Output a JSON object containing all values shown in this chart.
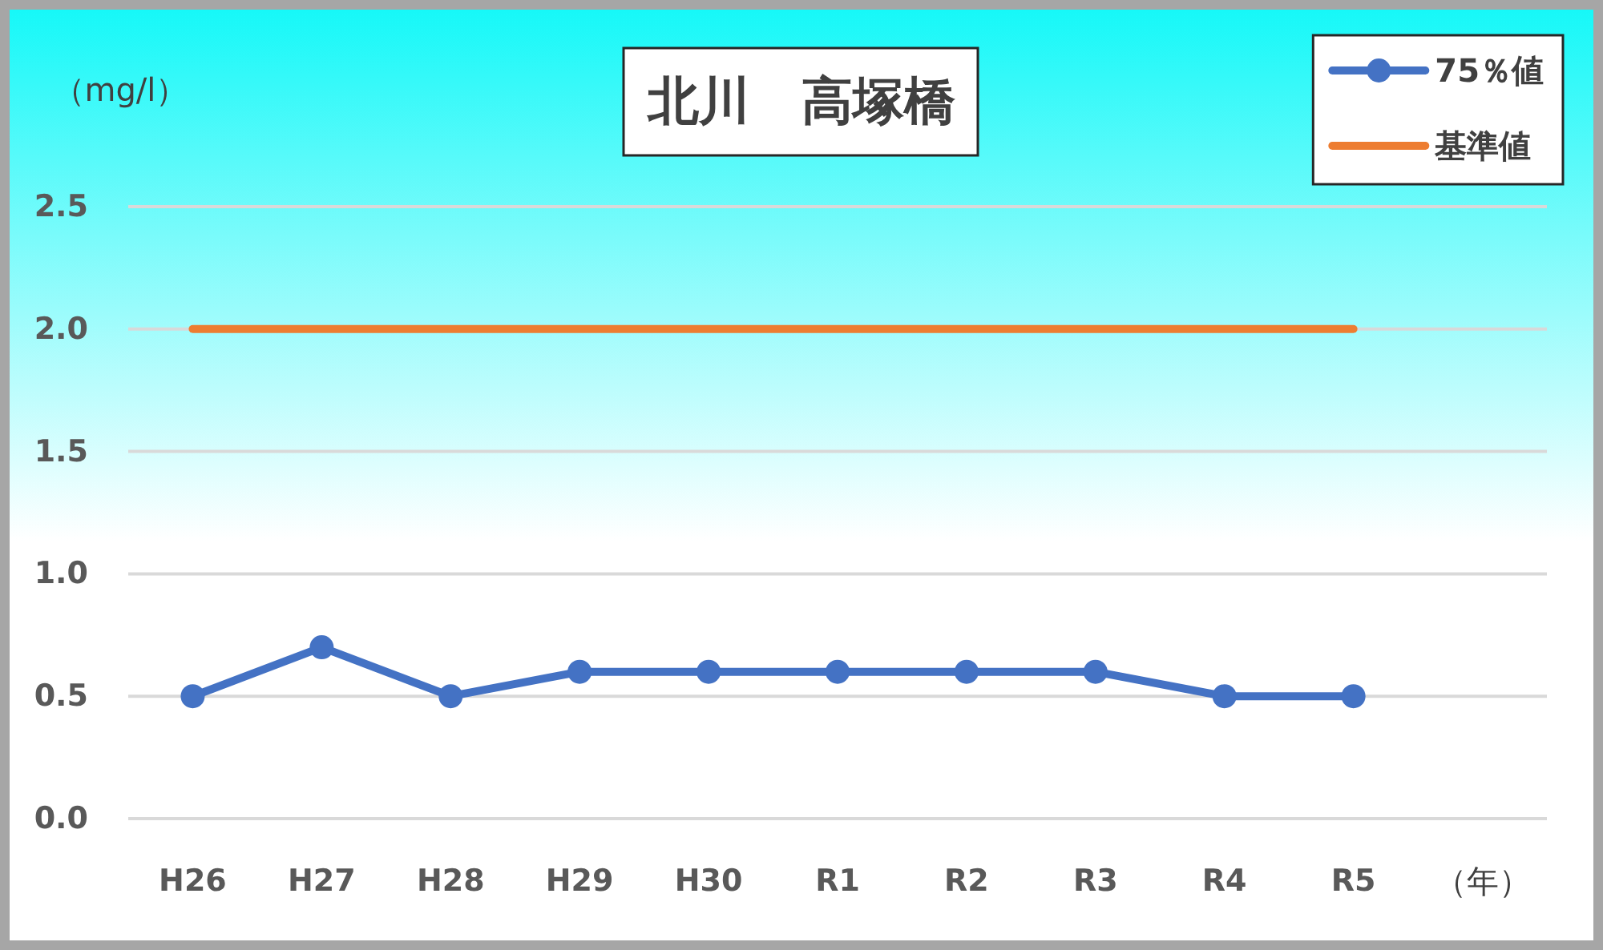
{
  "chart_data": {
    "type": "line",
    "title": "北川　高塚橋",
    "ylabel": "（mg/l）",
    "xlabel": "（年）",
    "categories": [
      "H26",
      "H27",
      "H28",
      "H29",
      "H30",
      "R1",
      "R2",
      "R3",
      "R4",
      "R5"
    ],
    "series": [
      {
        "name": "75％値",
        "color": "#4472c4",
        "marker": "circle",
        "values": [
          0.5,
          0.7,
          0.5,
          0.6,
          0.6,
          0.6,
          0.6,
          0.6,
          0.5,
          0.5
        ]
      },
      {
        "name": "基準値",
        "color": "#ed7d31",
        "values": [
          2.0,
          2.0,
          2.0,
          2.0,
          2.0,
          2.0,
          2.0,
          2.0,
          2.0,
          2.0
        ]
      }
    ],
    "ylim": [
      0,
      2.5
    ],
    "yticks": [
      {
        "value": 0,
        "label": "0.0"
      },
      0.5,
      {
        "value": 1,
        "label": "1.0"
      },
      1.5,
      {
        "value": 2,
        "label": "2.0"
      },
      2.5
    ],
    "grid": "y",
    "legend": "top right"
  }
}
